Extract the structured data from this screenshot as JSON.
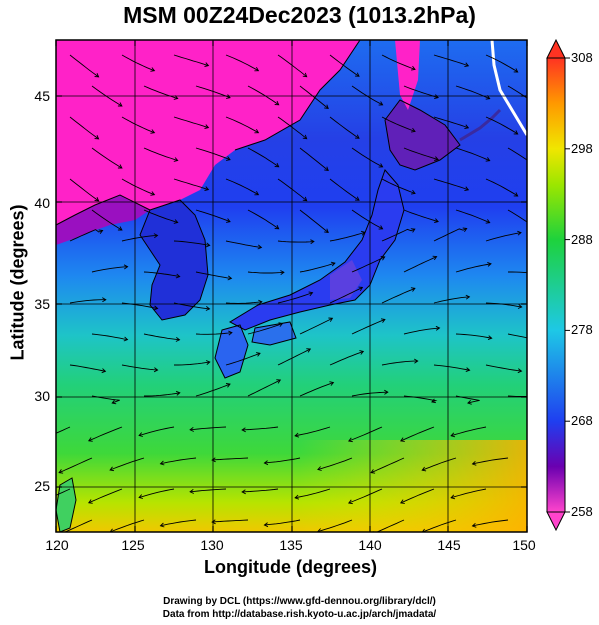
{
  "title": "MSM 00Z24Dec2023 (1013.2hPa)",
  "map": {
    "xlabel": "Longitude (degrees)",
    "ylabel": "Latitude  (degrees)",
    "lon_range": [
      120,
      150
    ],
    "lat_range": [
      22.5,
      47.6
    ],
    "xticks": [
      "120",
      "125",
      "130",
      "135",
      "140",
      "145",
      "150"
    ],
    "yticks": [
      "45",
      "40",
      "35",
      "30",
      "25"
    ],
    "field": "temperature",
    "overlay": "streamlines (wind)",
    "grid": true
  },
  "colorbar": {
    "ticks": [
      "308",
      "298",
      "288",
      "278",
      "268",
      "258"
    ],
    "range": [
      258,
      308
    ],
    "colors": [
      "#ff44cc",
      "#5500aa",
      "#1f3ff0",
      "#1ec8e6",
      "#1ed23c",
      "#9be600",
      "#f0e600",
      "#ff9900",
      "#ff3322"
    ]
  },
  "credits": {
    "line1": "Drawing by DCL (https://www.gfd-dennou.org/library/dcl/)",
    "line2": "Data from http://database.rish.kyoto-u.ac.jp/arch/jmadata/"
  }
}
